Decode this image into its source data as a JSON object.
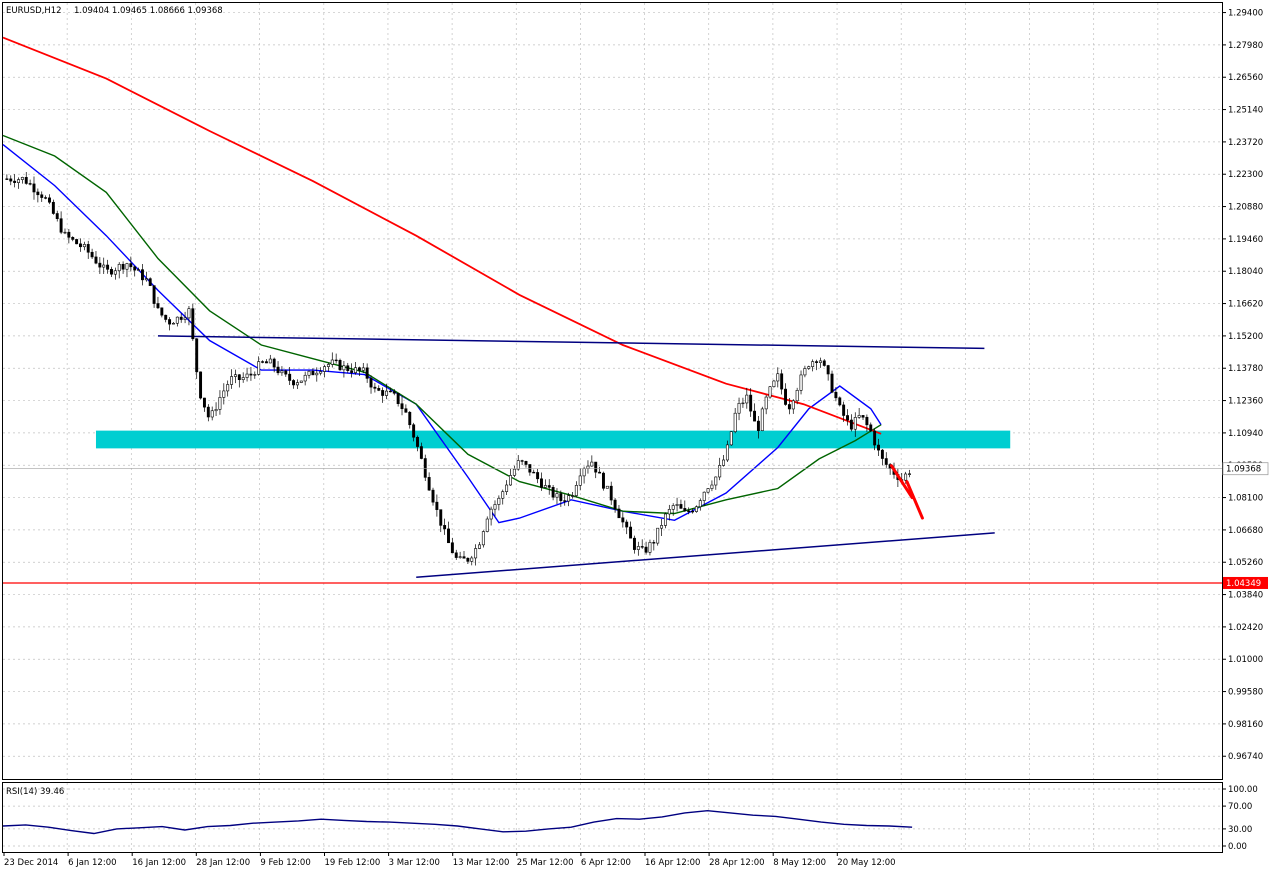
{
  "header": {
    "symbol": "EURUSD,H12",
    "ohlc": "1.09404 1.09465 1.08666 1.09368"
  },
  "rsi_panel": {
    "label": "RSI(14) 39.46",
    "levels": [
      "100.00",
      "70.00",
      "30.00",
      "0.00"
    ],
    "level_values": [
      100,
      70,
      30,
      0
    ]
  },
  "price_axis": {
    "ticks": [
      "1.29400",
      "1.27980",
      "1.26560",
      "1.25140",
      "1.23720",
      "1.22300",
      "1.20880",
      "1.19460",
      "1.18040",
      "1.16620",
      "1.15200",
      "1.13780",
      "1.12360",
      "1.10940",
      "1.09520",
      "1.08100",
      "1.06680",
      "1.05260",
      "1.03840",
      "1.02420",
      "1.01000",
      "0.99580",
      "0.98160",
      "0.96740"
    ],
    "tick_values": [
      1.294,
      1.2798,
      1.2656,
      1.2514,
      1.2372,
      1.223,
      1.2088,
      1.1946,
      1.1804,
      1.1662,
      1.152,
      1.1378,
      1.1236,
      1.1094,
      1.0952,
      1.081,
      1.0668,
      1.0526,
      1.0384,
      1.0242,
      1.01,
      0.9958,
      0.9816,
      0.9674
    ],
    "current_price_label": "1.09368",
    "current_price": 1.09368,
    "support_label": "1.04349",
    "support_price": 1.04349
  },
  "time_axis": {
    "labels": [
      "23 Dec 2014",
      "6 Jan 12:00",
      "16 Jan 12:00",
      "28 Jan 12:00",
      "9 Feb 12:00",
      "19 Feb 12:00",
      "3 Mar 12:00",
      "13 Mar 12:00",
      "25 Mar 12:00",
      "6 Apr 12:00",
      "16 Apr 12:00",
      "28 Apr 12:00",
      "8 May 12:00",
      "20 May 12:00"
    ]
  },
  "colors": {
    "up_candle": "#ffffff",
    "down_candle": "#000000",
    "ma_blue": "#0000ff",
    "ma_green": "#006400",
    "ma_red": "#ff0000",
    "trendline": "#000080",
    "zone": "#00ced1",
    "rsi_line": "#000080",
    "grid": "#c0c0c0"
  },
  "chart_data": {
    "type": "candlestick",
    "symbol": "EURUSD",
    "timeframe": "H12",
    "ylim": [
      0.9574,
      1.2982
    ],
    "close_path": [
      [
        0,
        1.221
      ],
      [
        4,
        1.221
      ],
      [
        8,
        1.213
      ],
      [
        12,
        1.196
      ],
      [
        16,
        1.19
      ],
      [
        20,
        1.18
      ],
      [
        24,
        1.184
      ],
      [
        28,
        1.176
      ],
      [
        30,
        1.163
      ],
      [
        32,
        1.158
      ],
      [
        34,
        1.16
      ],
      [
        36,
        1.163
      ],
      [
        38,
        1.128
      ],
      [
        40,
        1.115
      ],
      [
        42,
        1.125
      ],
      [
        44,
        1.133
      ],
      [
        46,
        1.133
      ],
      [
        48,
        1.135
      ],
      [
        50,
        1.14
      ],
      [
        52,
        1.14
      ],
      [
        54,
        1.135
      ],
      [
        56,
        1.132
      ],
      [
        58,
        1.133
      ],
      [
        60,
        1.136
      ],
      [
        62,
        1.139
      ],
      [
        64,
        1.14
      ],
      [
        66,
        1.138
      ],
      [
        68,
        1.137
      ],
      [
        70,
        1.136
      ],
      [
        72,
        1.128
      ],
      [
        74,
        1.127
      ],
      [
        76,
        1.125
      ],
      [
        78,
        1.118
      ],
      [
        80,
        1.105
      ],
      [
        82,
        1.09
      ],
      [
        84,
        1.075
      ],
      [
        86,
        1.062
      ],
      [
        88,
        1.053
      ],
      [
        90,
        1.054
      ],
      [
        92,
        1.06
      ],
      [
        94,
        1.075
      ],
      [
        96,
        1.08
      ],
      [
        98,
        1.09
      ],
      [
        100,
        1.097
      ],
      [
        102,
        1.093
      ],
      [
        104,
        1.088
      ],
      [
        106,
        1.083
      ],
      [
        108,
        1.08
      ],
      [
        110,
        1.082
      ],
      [
        112,
        1.094
      ],
      [
        114,
        1.097
      ],
      [
        116,
        1.088
      ],
      [
        118,
        1.08
      ],
      [
        120,
        1.07
      ],
      [
        122,
        1.06
      ],
      [
        124,
        1.057
      ],
      [
        126,
        1.062
      ],
      [
        128,
        1.072
      ],
      [
        130,
        1.078
      ],
      [
        132,
        1.074
      ],
      [
        134,
        1.077
      ],
      [
        136,
        1.085
      ],
      [
        138,
        1.09
      ],
      [
        140,
        1.1
      ],
      [
        142,
        1.12
      ],
      [
        144,
        1.125
      ],
      [
        146,
        1.11
      ],
      [
        148,
        1.126
      ],
      [
        150,
        1.134
      ],
      [
        152,
        1.12
      ],
      [
        154,
        1.131
      ],
      [
        156,
        1.14
      ],
      [
        158,
        1.143
      ],
      [
        160,
        1.132
      ],
      [
        162,
        1.12
      ],
      [
        164,
        1.112
      ],
      [
        166,
        1.117
      ],
      [
        168,
        1.11
      ],
      [
        170,
        1.098
      ],
      [
        172,
        1.093
      ],
      [
        174,
        1.089
      ],
      [
        176,
        1.094
      ]
    ],
    "x_index_max": 236,
    "moving_averages": [
      {
        "color": "blue",
        "points": [
          [
            0,
            1.236
          ],
          [
            10,
            1.218
          ],
          [
            20,
            1.196
          ],
          [
            30,
            1.172
          ],
          [
            40,
            1.15
          ],
          [
            50,
            1.137
          ],
          [
            60,
            1.137
          ],
          [
            70,
            1.135
          ],
          [
            80,
            1.122
          ],
          [
            90,
            1.09
          ],
          [
            96,
            1.07
          ],
          [
            100,
            1.072
          ],
          [
            110,
            1.08
          ],
          [
            120,
            1.075
          ],
          [
            130,
            1.071
          ],
          [
            140,
            1.083
          ],
          [
            150,
            1.103
          ],
          [
            156,
            1.12
          ],
          [
            162,
            1.13
          ],
          [
            168,
            1.12
          ],
          [
            170,
            1.113
          ]
        ]
      },
      {
        "color": "green",
        "points": [
          [
            0,
            1.24
          ],
          [
            10,
            1.231
          ],
          [
            20,
            1.215
          ],
          [
            30,
            1.186
          ],
          [
            40,
            1.163
          ],
          [
            50,
            1.148
          ],
          [
            60,
            1.142
          ],
          [
            70,
            1.136
          ],
          [
            80,
            1.122
          ],
          [
            90,
            1.1
          ],
          [
            100,
            1.088
          ],
          [
            110,
            1.082
          ],
          [
            120,
            1.075
          ],
          [
            130,
            1.074
          ],
          [
            140,
            1.08
          ],
          [
            150,
            1.085
          ],
          [
            158,
            1.098
          ],
          [
            165,
            1.106
          ],
          [
            170,
            1.113
          ]
        ]
      },
      {
        "color": "red",
        "points": [
          [
            0,
            1.283
          ],
          [
            20,
            1.265
          ],
          [
            40,
            1.242
          ],
          [
            60,
            1.22
          ],
          [
            80,
            1.196
          ],
          [
            100,
            1.17
          ],
          [
            120,
            1.148
          ],
          [
            140,
            1.131
          ],
          [
            155,
            1.122
          ],
          [
            170,
            1.109
          ]
        ]
      }
    ],
    "trendlines": [
      {
        "points": [
          [
            30,
            1.152
          ],
          [
            190,
            1.1465
          ]
        ],
        "label": "resistance"
      },
      {
        "points": [
          [
            80,
            1.046
          ],
          [
            192,
            1.0655
          ]
        ],
        "label": "rising support"
      }
    ],
    "zone": {
      "x_range": [
        18,
        195
      ],
      "y_range": [
        1.1026,
        1.1104
      ]
    },
    "horizontal_support": 1.04349,
    "forecast_strokes": [
      [
        [
          172,
          1.095
        ],
        [
          176,
          1.081
        ]
      ],
      [
        [
          175,
          1.088
        ],
        [
          178,
          1.072
        ]
      ]
    ],
    "rsi_values": [
      35,
      37,
      33,
      27,
      22,
      30,
      32,
      34,
      28,
      34,
      36,
      40,
      42,
      44,
      47,
      45,
      43,
      42,
      40,
      38,
      35,
      30,
      25,
      26,
      30,
      33,
      42,
      48,
      47,
      51,
      58,
      62,
      58,
      54,
      52,
      47,
      42,
      38,
      36,
      35,
      33
    ],
    "rsi_last": 39.46
  }
}
